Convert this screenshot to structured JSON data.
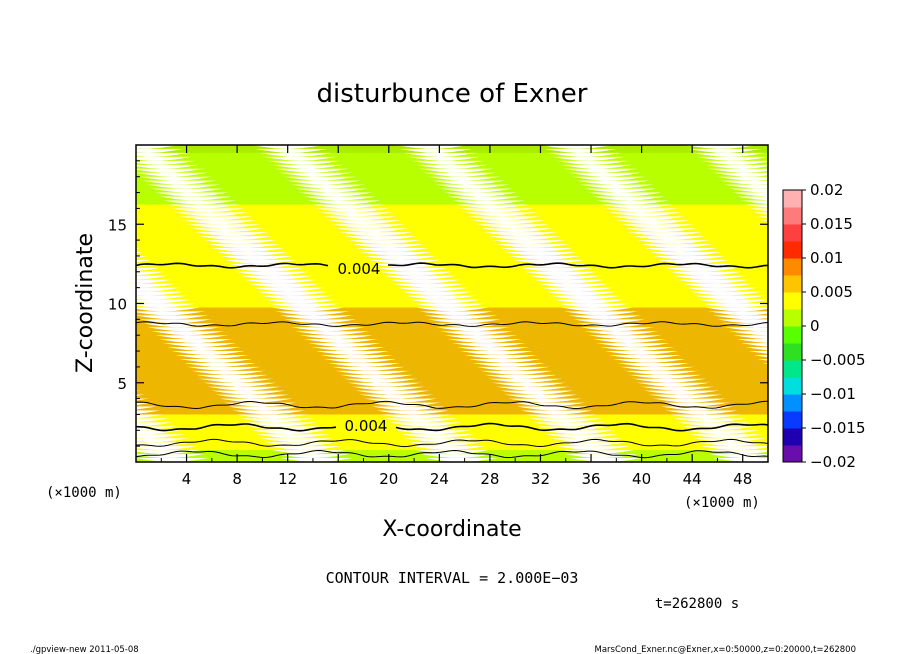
{
  "chart_data": {
    "type": "heatmap",
    "title": "disturbunce of Exner",
    "xlabel": "X-coordinate",
    "ylabel": "Z-coordinate",
    "x_unit_left": "(×1000 m)",
    "x_unit_right": "(×1000 m)",
    "xlim": [
      0,
      50
    ],
    "ylim": [
      0,
      20
    ],
    "xticks": [
      "4",
      "8",
      "12",
      "16",
      "20",
      "24",
      "28",
      "32",
      "36",
      "40",
      "44",
      "48"
    ],
    "yticks": [
      "5",
      "10",
      "15"
    ],
    "colorbar": {
      "range": [
        -0.02,
        0.02
      ],
      "tick_labels": [
        "0.02",
        "0.015",
        "0.01",
        "0.005",
        "0",
        "−0.005",
        "−0.01",
        "−0.015",
        "−0.02"
      ],
      "colors": [
        "#6a0dad",
        "#1f00b0",
        "#0a3aff",
        "#0090ff",
        "#00dede",
        "#00e68a",
        "#2ee020",
        "#57ff00",
        "#b8ff00",
        "#ffff00",
        "#ffc400",
        "#ff8a00",
        "#ff2a00",
        "#ff4040",
        "#ff7a7a",
        "#ffb0b0"
      ]
    },
    "contour_interval_text": "CONTOUR INTERVAL = 2.000E−03",
    "contour_labels": [
      "0.004",
      "0.004"
    ],
    "time_text": "t=262800  s",
    "profile": {
      "z": [
        0,
        1,
        2,
        3,
        4,
        5,
        6,
        7,
        8,
        9,
        10,
        11,
        12,
        13,
        14,
        15,
        16,
        17,
        18,
        19,
        20
      ],
      "value": [
        0.0015,
        0.003,
        0.0042,
        0.005,
        0.0056,
        0.0061,
        0.0062,
        0.0061,
        0.0058,
        0.0054,
        0.0049,
        0.0044,
        0.0041,
        0.0038,
        0.0034,
        0.003,
        0.0026,
        0.0022,
        0.0018,
        0.0014,
        0.001
      ]
    }
  },
  "footer": {
    "left": "./gpview-new   2011-05-08",
    "right": "MarsCond_Exner.nc@Exner,x=0:50000,z=0:20000,t=262800"
  }
}
